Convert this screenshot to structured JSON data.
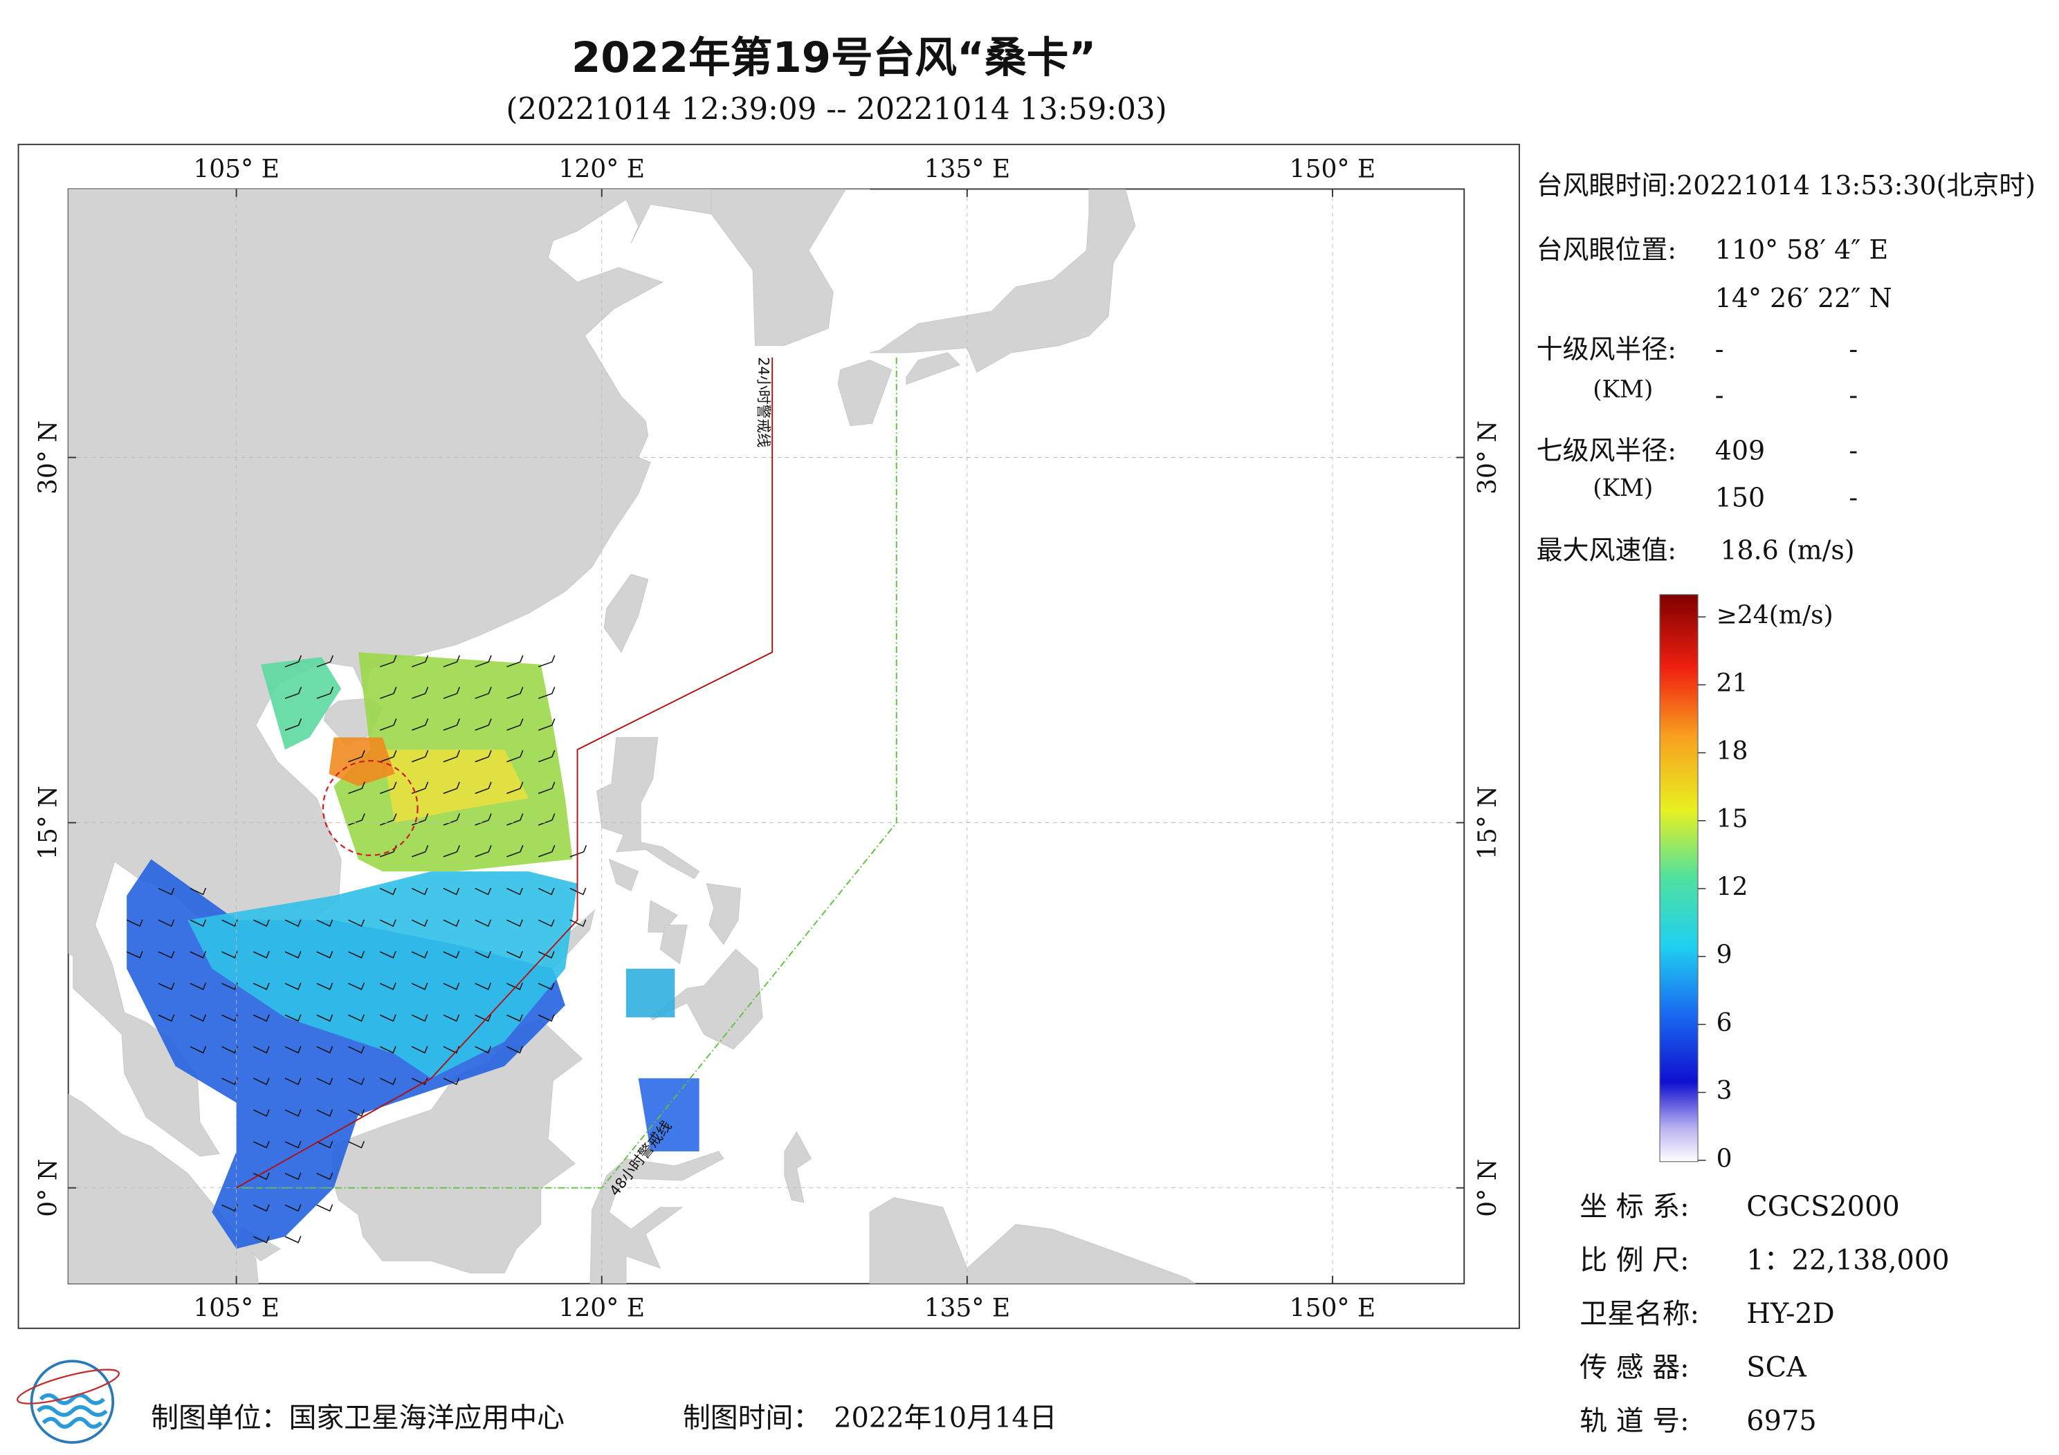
{
  "header": {
    "title": "2022年第19号台风“桑卡”",
    "subtitle": "(20221014 12:39:09 -- 20221014 13:59:03)"
  },
  "map": {
    "lon_ticks": [
      {
        "value": 105,
        "label": "105° E"
      },
      {
        "value": 120,
        "label": "120° E"
      },
      {
        "value": 135,
        "label": "135° E"
      },
      {
        "value": 150,
        "label": "150° E"
      }
    ],
    "lat_ticks": [
      {
        "value": 0,
        "label": "0° N"
      },
      {
        "value": 15,
        "label": "15° N"
      },
      {
        "value": 30,
        "label": "30° N"
      }
    ],
    "warning_24h": "24小时警戒线",
    "warning_48h": "48小时警戒线"
  },
  "info": {
    "eye_time": "台风眼时间:20221014 13:53:30(北京时)",
    "eye_pos_label": "台风眼位置:",
    "eye_lon": "110° 58′ 4″ E",
    "eye_lat": "14° 26′ 22″ N",
    "r10_label": "十级风半径:",
    "r10_unit": "(KM)",
    "r10": [
      [
        "-",
        "-"
      ],
      [
        "-",
        "-"
      ]
    ],
    "r7_label": "七级风半径:",
    "r7_unit": "(KM)",
    "r7": [
      [
        "409",
        "-"
      ],
      [
        "150",
        "-"
      ]
    ],
    "max_wind_label": "最大风速值:",
    "max_wind": "18.6  (m/s)"
  },
  "colorbar": {
    "lim": [
      0,
      24
    ],
    "ticks": [
      {
        "value": 24,
        "label": "≥24(m/s)"
      },
      21,
      18,
      15,
      12,
      9,
      6,
      3,
      0
    ]
  },
  "meta": [
    {
      "label": "坐 标 系:",
      "value": "CGCS2000"
    },
    {
      "label": "比 例 尺:",
      "value": "1：22,138,000"
    },
    {
      "label": "卫星名称:",
      "value": "HY-2D"
    },
    {
      "label": "传 感 器:",
      "value": "SCA"
    },
    {
      "label": "轨 道 号:",
      "value": "6975"
    }
  ],
  "footer": {
    "unit": "制图单位：国家卫星海洋应用中心",
    "time_label": "制图时间：",
    "time": "2022年10月14日"
  }
}
